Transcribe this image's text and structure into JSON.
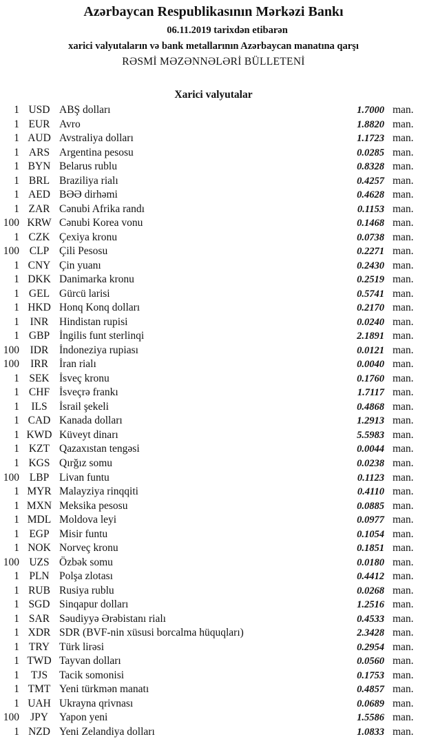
{
  "header": {
    "title": "Azərbaycan Respublikasının Mərkəzi Bankı",
    "date_line": "06.11.2019  tarixdən etibarən",
    "subtitle": "xarici valyutaların və bank metallarının Azərbaycan manatına qarşı",
    "bulletin": "RƏSMİ MƏZƏNNƏLƏRİ BÜLLETENİ"
  },
  "section_title": "Xarici valyutalar",
  "unit": "man.",
  "rates": [
    {
      "amount": "1",
      "code": "USD",
      "name": "ABŞ dolları",
      "rate": "1.7000"
    },
    {
      "amount": "1",
      "code": "EUR",
      "name": "Avro",
      "rate": "1.8820"
    },
    {
      "amount": "1",
      "code": "AUD",
      "name": "Avstraliya dolları",
      "rate": "1.1723"
    },
    {
      "amount": "1",
      "code": "ARS",
      "name": "Argentina pesosu",
      "rate": "0.0285"
    },
    {
      "amount": "1",
      "code": "BYN",
      "name": "Belarus rublu",
      "rate": "0.8328"
    },
    {
      "amount": "1",
      "code": "BRL",
      "name": "Braziliya rialı",
      "rate": "0.4257"
    },
    {
      "amount": "1",
      "code": "AED",
      "name": "BƏƏ dirhəmi",
      "rate": "0.4628"
    },
    {
      "amount": "1",
      "code": "ZAR",
      "name": "Cənubi Afrika randı",
      "rate": "0.1153"
    },
    {
      "amount": "100",
      "code": "KRW",
      "name": "Cənubi Korea vonu",
      "rate": "0.1468"
    },
    {
      "amount": "1",
      "code": "CZK",
      "name": "Çexiya kronu",
      "rate": "0.0738"
    },
    {
      "amount": "100",
      "code": "CLP",
      "name": "Çili Pesosu",
      "rate": "0.2271"
    },
    {
      "amount": "1",
      "code": "CNY",
      "name": "Çin yuanı",
      "rate": "0.2430"
    },
    {
      "amount": "1",
      "code": "DKK",
      "name": "Danimarka kronu",
      "rate": "0.2519"
    },
    {
      "amount": "1",
      "code": "GEL",
      "name": "Gürcü larisi",
      "rate": "0.5741"
    },
    {
      "amount": "1",
      "code": "HKD",
      "name": "Honq Konq dolları",
      "rate": "0.2170"
    },
    {
      "amount": "1",
      "code": "INR",
      "name": "Hindistan rupisi",
      "rate": "0.0240"
    },
    {
      "amount": "1",
      "code": "GBP",
      "name": "İngilis funt sterlinqi",
      "rate": "2.1891"
    },
    {
      "amount": "100",
      "code": "IDR",
      "name": "İndoneziya rupiası",
      "rate": "0.0121"
    },
    {
      "amount": "100",
      "code": "IRR",
      "name": "İran rialı",
      "rate": "0.0040"
    },
    {
      "amount": "1",
      "code": "SEK",
      "name": "İsveç kronu",
      "rate": "0.1760"
    },
    {
      "amount": "1",
      "code": "CHF",
      "name": "İsveçrə frankı",
      "rate": "1.7117"
    },
    {
      "amount": "1",
      "code": "ILS",
      "name": "İsrail şekeli",
      "rate": "0.4868"
    },
    {
      "amount": "1",
      "code": "CAD",
      "name": "Kanada dolları",
      "rate": "1.2913"
    },
    {
      "amount": "1",
      "code": "KWD",
      "name": "Küveyt dinarı",
      "rate": "5.5983"
    },
    {
      "amount": "1",
      "code": "KZT",
      "name": "Qazaxıstan tengəsi",
      "rate": "0.0044"
    },
    {
      "amount": "1",
      "code": "KGS",
      "name": "Qırğız somu",
      "rate": "0.0238"
    },
    {
      "amount": "100",
      "code": "LBP",
      "name": "Livan funtu",
      "rate": "0.1123"
    },
    {
      "amount": "1",
      "code": "MYR",
      "name": "Malayziya rinqqiti",
      "rate": "0.4110"
    },
    {
      "amount": "1",
      "code": "MXN",
      "name": "Meksika pesosu",
      "rate": "0.0885"
    },
    {
      "amount": "1",
      "code": "MDL",
      "name": "Moldova leyi",
      "rate": "0.0977"
    },
    {
      "amount": "1",
      "code": "EGP",
      "name": "Misir funtu",
      "rate": "0.1054"
    },
    {
      "amount": "1",
      "code": "NOK",
      "name": "Norveç kronu",
      "rate": "0.1851"
    },
    {
      "amount": "100",
      "code": "UZS",
      "name": "Özbək somu",
      "rate": "0.0180"
    },
    {
      "amount": "1",
      "code": "PLN",
      "name": "Polşa zlotası",
      "rate": "0.4412"
    },
    {
      "amount": "1",
      "code": "RUB",
      "name": "Rusiya rublu",
      "rate": "0.0268"
    },
    {
      "amount": "1",
      "code": "SGD",
      "name": "Sinqapur dolları",
      "rate": "1.2516"
    },
    {
      "amount": "1",
      "code": "SAR",
      "name": "Səudiyyə Ərəbistanı rialı",
      "rate": "0.4533"
    },
    {
      "amount": "1",
      "code": "XDR",
      "name": "SDR (BVF-nin xüsusi borcalma hüquqları)",
      "rate": "2.3428"
    },
    {
      "amount": "1",
      "code": "TRY",
      "name": "Türk lirəsi",
      "rate": "0.2954"
    },
    {
      "amount": "1",
      "code": "TWD",
      "name": "Tayvan dolları",
      "rate": "0.0560"
    },
    {
      "amount": "1",
      "code": "TJS",
      "name": "Tacik somonisi",
      "rate": "0.1753"
    },
    {
      "amount": "1",
      "code": "TMT",
      "name": "Yeni türkmən manatı",
      "rate": "0.4857"
    },
    {
      "amount": "1",
      "code": "UAH",
      "name": "Ukrayna qrivnası",
      "rate": "0.0689"
    },
    {
      "amount": "100",
      "code": "JPY",
      "name": "Yapon yeni",
      "rate": "1.5586"
    },
    {
      "amount": "1",
      "code": "NZD",
      "name": "Yeni Zelandiya dolları",
      "rate": "1.0833"
    }
  ]
}
